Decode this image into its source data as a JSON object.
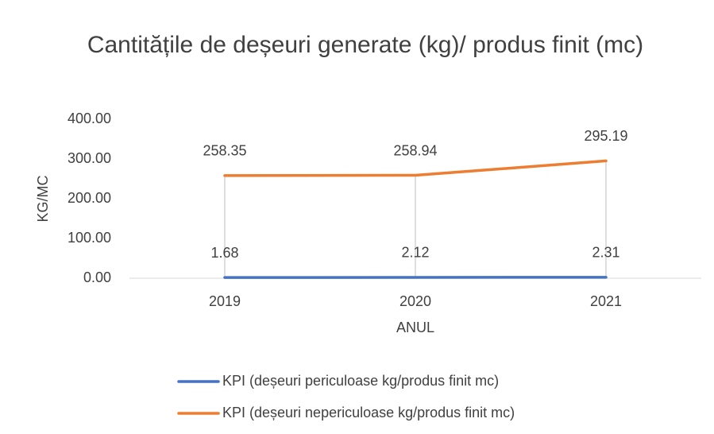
{
  "chart_data": {
    "type": "line",
    "title": "Cantitățile de deșeuri generate (kg)/ produs finit (mc)",
    "x_label": "ANUL",
    "y_label": "KG/MC",
    "categories": [
      "2019",
      "2020",
      "2021"
    ],
    "series": [
      {
        "name": "KPI (deșeuri periculoase kg/produs finit mc)",
        "color": "#4472c4",
        "values": [
          1.68,
          2.12,
          2.31
        ]
      },
      {
        "name": "KPI (deșeuri nepericuloase kg/produs finit mc)",
        "color": "#ed7d31",
        "values": [
          258.35,
          258.94,
          295.19
        ]
      }
    ],
    "ylim": [
      0,
      400
    ],
    "yticks": [
      {
        "value": 0,
        "label": "0.00"
      },
      {
        "value": 100,
        "label": "100.00"
      },
      {
        "value": 200,
        "label": "200.00"
      },
      {
        "value": 300,
        "label": "300.00"
      },
      {
        "value": 400,
        "label": "400.00"
      }
    ],
    "hi_low_lines": true,
    "legend": "bottom"
  }
}
